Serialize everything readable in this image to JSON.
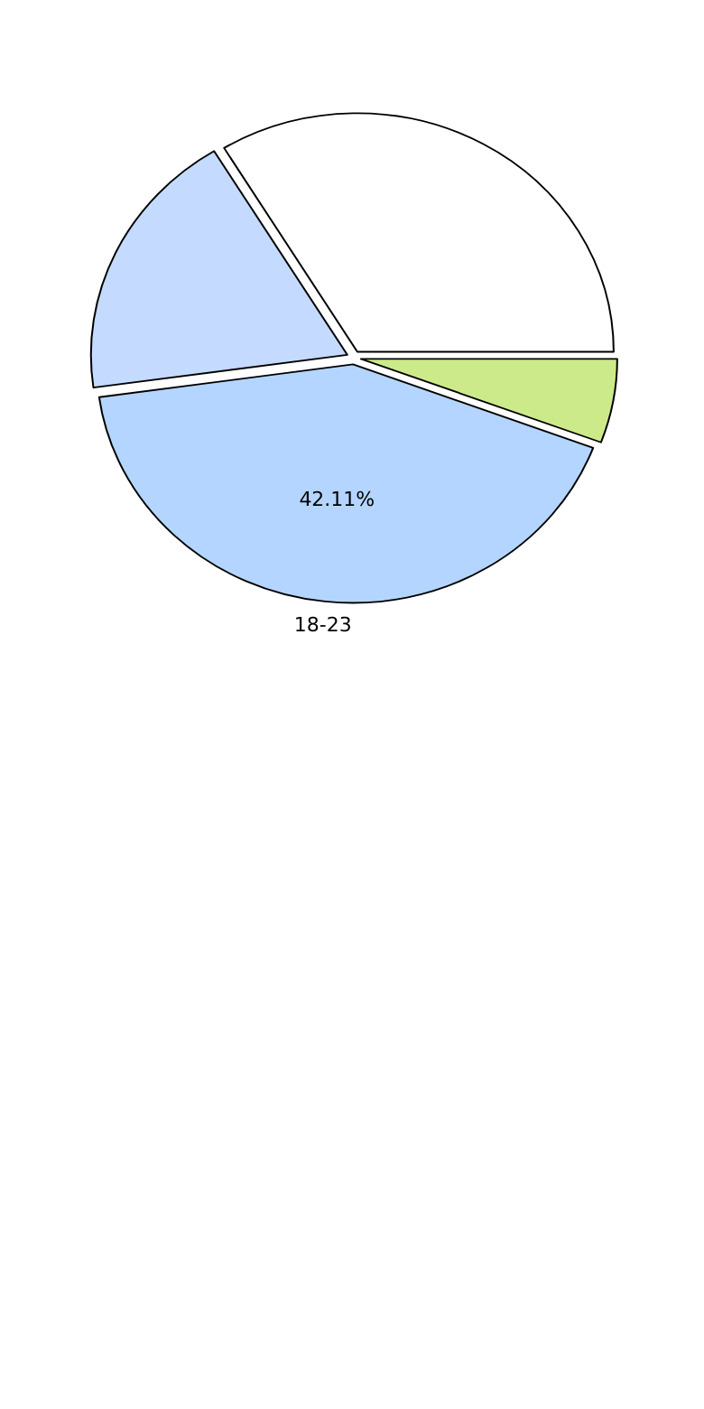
{
  "chart_data": {
    "type": "pie",
    "categories": [
      null,
      null,
      "18-23",
      null
    ],
    "values": [
      33.7,
      18.5,
      42.11,
      5.69
    ],
    "colors": [
      "#ffffff",
      "#c4dafe",
      "#b3d5ff",
      "#cdea8a"
    ],
    "value_labels": [
      null,
      null,
      "42.11%",
      null
    ]
  }
}
